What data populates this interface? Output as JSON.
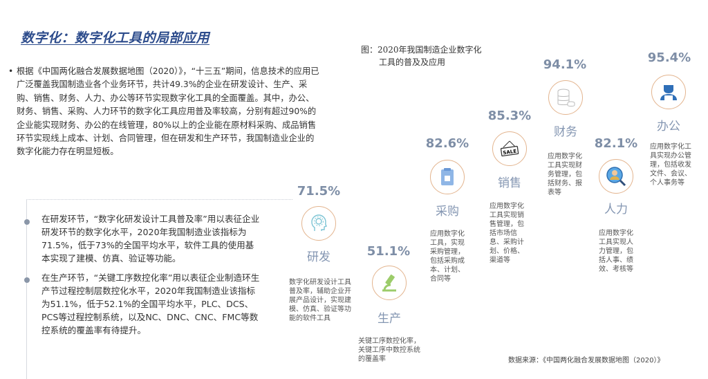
{
  "title": "数字化：数字化工具的局部应用",
  "intro": "根据《中国两化融合发展数据地图（2020）》，“十三五”期间，信息技术的应用已广泛覆盖我国制造业各个业务环节，共计49.3%的企业在研发设计、生产、采购、销售、财务、人力、办公等环节实现数字化工具的全面覆盖。其中，办公、财务、销售、采购、人力环节的数字化工具应用普及率较高，分别有超过90%的企业能实现财务、办公的在线管理，80%以上的企业能在原材料采购、成品销售环节实现线上成本、计划、合同管理，但在研发和生产环节，我国制造业企业的数字化能力存在明显短板。",
  "paragraphs": [
    "在研发环节，“数字化研发设计工具普及率”用以表征企业研发环节的数字化水平，2020年我国制造业该指标为71.5%，低于73%的全国平均水平，软件工具的使用基本实现了建模、仿真、验证等功能。",
    "在生产环节，“关键工序数控化率”用以表征企业制造环生产节过程控制层数控化水平，2020年我国制造业该指标为51.1%，低于52.1%的全国平均水平，PLC、DCS、PCS等过程控制系统，以及NC、DNC、CNC、FMC等数控系统的覆盖率有待提升。"
  ],
  "caption": {
    "line1": "图：2020年我国制造企业数字化",
    "line2": "工具的普及及应用"
  },
  "items": [
    {
      "pct": "71.5%",
      "name": "研发",
      "icon": "brain-gear-icon",
      "desc": "数字化研发设计工具普及率，辅助企业开展产品设计，实现建模、仿真、验证等功能的软件工具"
    },
    {
      "pct": "51.1%",
      "name": "生产",
      "icon": "microscope-icon",
      "desc": "关键工序数控化率，关键工序中数控系统的覆盖率"
    },
    {
      "pct": "82.6%",
      "name": "采购",
      "icon": "clipboard-icon",
      "desc": "应用数字化工具，实现采购管理，包括采购成本、计划、合同等"
    },
    {
      "pct": "85.3%",
      "name": "销售",
      "icon": "sale-sign-icon",
      "desc": "应用数字化工具实现销售管理，包括市场信息、采购计划、价格、渠道等"
    },
    {
      "pct": "94.1%",
      "name": "财务",
      "icon": "coins-stack-icon",
      "desc": "应用数字化工具实现财务管理，包括财务、报表等"
    },
    {
      "pct": "82.1%",
      "name": "人力",
      "icon": "person-search-icon",
      "desc": "应用数字化工具实现人力管理，包括人事、绩效、考核等"
    },
    {
      "pct": "95.4%",
      "name": "办公",
      "icon": "office-worker-icon",
      "desc": "应用数字化工具实现办公管理，包括收发文件、会议、个人事务等"
    }
  ],
  "source": "数据来源：《中国两化融合发展数据地图（2020）》",
  "colors": {
    "title": "#2d4c8c",
    "percent": "#7e8ea6",
    "circle": "#e3b48e"
  }
}
